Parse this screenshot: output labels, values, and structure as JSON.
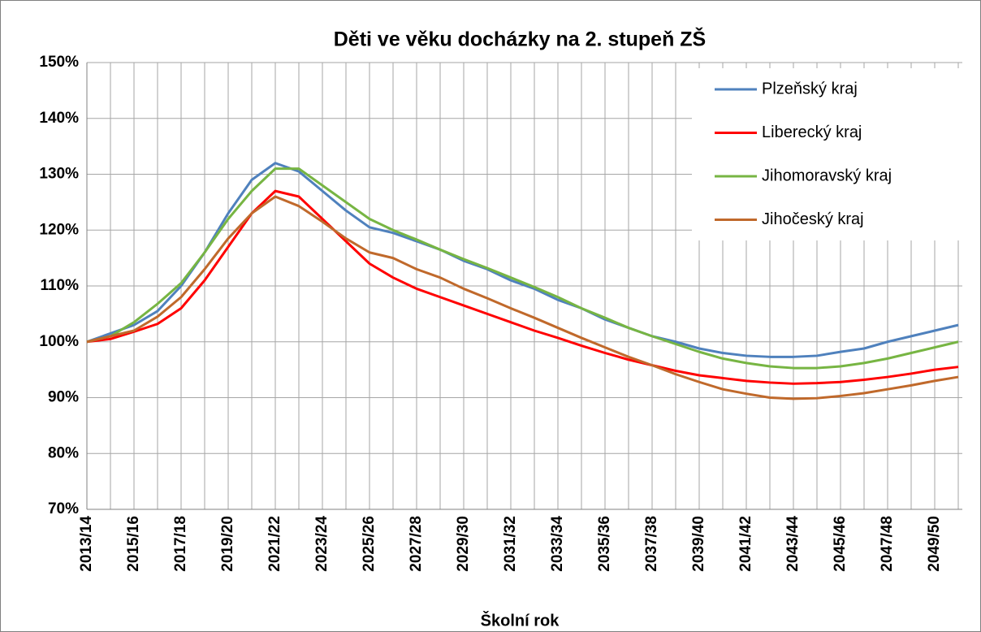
{
  "chart_data": {
    "type": "line",
    "title": "Děti ve věku docházky na 2. stupeň ZŠ",
    "xlabel": "Školní rok",
    "categories": [
      "2013/14",
      null,
      "2015/16",
      null,
      "2017/18",
      null,
      "2019/20",
      null,
      "2021/22",
      null,
      "2023/24",
      null,
      "2025/26",
      null,
      "2027/28",
      null,
      "2029/30",
      null,
      "2031/32",
      null,
      "2033/34",
      null,
      "2035/36",
      null,
      "2037/38",
      null,
      "2039/40",
      null,
      "2041/42",
      null,
      "2043/44",
      null,
      "2045/46",
      null,
      "2047/48",
      null,
      "2049/50",
      null
    ],
    "series": [
      {
        "name": "Plzeňský kraj",
        "color": "#4f81bd",
        "values": [
          100,
          101.5,
          103,
          105.5,
          110,
          116,
          123,
          129,
          132,
          130.5,
          127,
          123.5,
          120.5,
          119.5,
          118,
          116.5,
          114.5,
          113,
          111,
          109.5,
          107.5,
          106,
          104,
          102.5,
          101,
          100,
          98.8,
          98,
          97.5,
          97.3,
          97.3,
          97.5,
          98.2,
          98.8,
          100,
          101,
          102,
          103
        ]
      },
      {
        "name": "Liberecký kraj",
        "color": "#ff0000",
        "values": [
          100,
          100.5,
          101.8,
          103.2,
          106,
          111,
          117,
          123,
          127,
          126,
          122,
          118,
          114,
          111.5,
          109.5,
          108,
          106.5,
          105,
          103.5,
          102,
          100.7,
          99.3,
          98,
          96.8,
          95.8,
          94.8,
          94,
          93.5,
          93,
          92.7,
          92.5,
          92.6,
          92.8,
          93.2,
          93.7,
          94.3,
          95,
          95.5
        ]
      },
      {
        "name": "Jihomoravský kraj",
        "color": "#77b543",
        "values": [
          100,
          101,
          103.5,
          106.8,
          110.5,
          116,
          122,
          127,
          131,
          131,
          128,
          125,
          122,
          120,
          118.3,
          116.5,
          114.8,
          113.2,
          111.5,
          109.8,
          108,
          106,
          104.3,
          102.5,
          101,
          99.6,
          98.2,
          97,
          96.2,
          95.6,
          95.3,
          95.3,
          95.6,
          96.2,
          97,
          98,
          99,
          100
        ]
      },
      {
        "name": "Jihočeský kraj",
        "color": "#c0692b",
        "values": [
          100,
          101,
          102,
          104.5,
          108,
          113,
          118.5,
          123,
          126,
          124.3,
          121.5,
          118.5,
          116,
          115,
          113,
          111.5,
          109.5,
          107.8,
          106,
          104.3,
          102.5,
          100.7,
          99,
          97.3,
          95.8,
          94.2,
          92.8,
          91.5,
          90.7,
          90,
          89.8,
          89.9,
          90.3,
          90.8,
          91.5,
          92.2,
          93,
          93.7
        ]
      }
    ],
    "ylim": [
      70,
      150
    ],
    "yticks": [
      {
        "value": 70,
        "label": "70%"
      },
      {
        "value": 80,
        "label": "80%"
      },
      {
        "value": 90,
        "label": "90%"
      },
      {
        "value": 100,
        "label": "100%"
      },
      {
        "value": 110,
        "label": "110%"
      },
      {
        "value": 120,
        "label": "120%"
      },
      {
        "value": 130,
        "label": "130%"
      },
      {
        "value": 140,
        "label": "140%"
      },
      {
        "value": 150,
        "label": "150%"
      }
    ],
    "grid": true,
    "legend": "upper right"
  }
}
